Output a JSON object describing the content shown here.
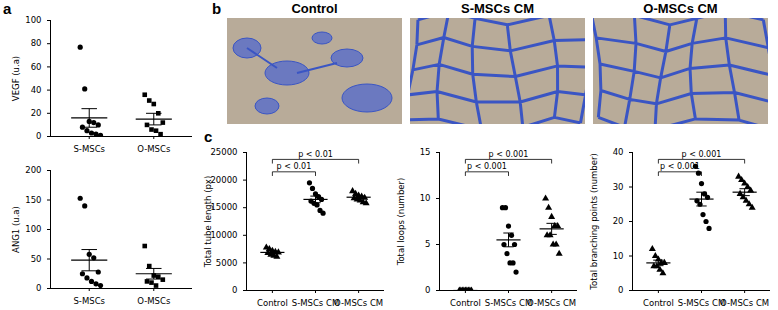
{
  "panel_labels": [
    "a",
    "b",
    "c"
  ],
  "images": [
    "Control",
    "S-MSCs CM",
    "O-MSCs CM"
  ],
  "chart_data": [
    {
      "type": "scatter",
      "ylabel": "VEGF (u.a)",
      "ylim": [
        0,
        100
      ],
      "yticks": [
        0,
        20,
        40,
        60,
        80,
        100
      ],
      "series": [
        {
          "name": "S-MSCs",
          "color": "#000000",
          "marker": "circle",
          "values": [
            77,
            41,
            13,
            12,
            10,
            8,
            5,
            3,
            2,
            1
          ],
          "mean": 16,
          "error": 8
        },
        {
          "name": "O-MSCs",
          "color": "#000000",
          "marker": "square",
          "values": [
            36,
            31,
            28,
            20,
            12,
            10,
            6,
            5,
            2
          ],
          "mean": 15,
          "error": 5
        }
      ],
      "annotations": []
    },
    {
      "type": "scatter",
      "ylabel": "ANG1 (u.a)",
      "ylim": [
        0,
        200
      ],
      "yticks": [
        0,
        50,
        100,
        150,
        200
      ],
      "series": [
        {
          "name": "S-MSCs",
          "color": "#000000",
          "marker": "circle",
          "values": [
            153,
            140,
            58,
            52,
            28,
            25,
            18,
            12,
            8,
            5
          ],
          "mean": 48,
          "error": 18
        },
        {
          "name": "O-MSCs",
          "color": "#000000",
          "marker": "square",
          "values": [
            72,
            38,
            22,
            20,
            15,
            12,
            10,
            5
          ],
          "mean": 25,
          "error": 9
        }
      ],
      "annotations": []
    },
    {
      "type": "scatter",
      "ylabel": "Total tube length (px)",
      "ylim": [
        0,
        25000
      ],
      "yticks": [
        0,
        5000,
        10000,
        15000,
        20000,
        25000
      ],
      "series": [
        {
          "name": "Control",
          "color": "#000000",
          "marker": "triangle",
          "values": [
            7800,
            7500,
            7200,
            7000,
            6900,
            6800,
            6500,
            6300,
            6100
          ],
          "mean": 6900,
          "error": 250
        },
        {
          "name": "S-MSCs CM",
          "color": "#000000",
          "marker": "circle",
          "values": [
            19500,
            18500,
            17500,
            17000,
            16500,
            16200,
            15800,
            15500,
            14500,
            14000
          ],
          "mean": 16500,
          "error": 600
        },
        {
          "name": "O-MSCs CM",
          "color": "#000000",
          "marker": "triangle",
          "values": [
            18000,
            17500,
            17200,
            17000,
            16800,
            16700,
            16500,
            16300,
            16000,
            15800
          ],
          "mean": 16900,
          "error": 250
        }
      ],
      "annotations": [
        {
          "from": "Control",
          "to": "S-MSCs CM",
          "label": "p < 0.01"
        },
        {
          "from": "Control",
          "to": "O-MSCs CM",
          "label": "p < 0.01"
        }
      ]
    },
    {
      "type": "scatter",
      "ylabel": "Total loops (number)",
      "ylim": [
        0,
        15
      ],
      "yticks": [
        0,
        5,
        10,
        15
      ],
      "series": [
        {
          "name": "Control",
          "color": "#000000",
          "marker": "triangle",
          "values": [
            0,
            0,
            0,
            0,
            0,
            0,
            0,
            0,
            0
          ],
          "mean": 0,
          "error": 0
        },
        {
          "name": "S-MSCs CM",
          "color": "#000000",
          "marker": "circle",
          "values": [
            9,
            9,
            7,
            6,
            5,
            5,
            4,
            3,
            3,
            2
          ],
          "mean": 5.5,
          "error": 0.75
        },
        {
          "name": "O-MSCs CM",
          "color": "#000000",
          "marker": "triangle",
          "values": [
            10,
            9,
            8,
            7,
            7,
            6,
            6,
            5,
            5,
            4
          ],
          "mean": 6.7,
          "error": 0.6
        }
      ],
      "annotations": [
        {
          "from": "Control",
          "to": "S-MSCs CM",
          "label": "p < 0.001"
        },
        {
          "from": "Control",
          "to": "O-MSCs CM",
          "label": "p < 0.001"
        }
      ]
    },
    {
      "type": "scatter",
      "ylabel": "Total branching points (number)",
      "ylim": [
        0,
        40
      ],
      "yticks": [
        0,
        10,
        20,
        30,
        40
      ],
      "series": [
        {
          "name": "Control",
          "color": "#000000",
          "marker": "triangle",
          "values": [
            12,
            10,
            9,
            8,
            8,
            7,
            7,
            6,
            5
          ],
          "mean": 8,
          "error": 0.8
        },
        {
          "name": "S-MSCs CM",
          "color": "#000000",
          "marker": "circle",
          "values": [
            36,
            34,
            31,
            28,
            27,
            26,
            25,
            22,
            20,
            18
          ],
          "mean": 26.5,
          "error": 2
        },
        {
          "name": "O-MSCs CM",
          "color": "#000000",
          "marker": "triangle",
          "values": [
            33,
            32,
            31,
            30,
            29,
            28,
            27,
            26,
            25,
            24
          ],
          "mean": 28.5,
          "error": 1
        }
      ],
      "annotations": [
        {
          "from": "Control",
          "to": "S-MSCs CM",
          "label": "p < 0.001"
        },
        {
          "from": "Control",
          "to": "O-MSCs CM",
          "label": "p < 0.001"
        }
      ]
    }
  ]
}
